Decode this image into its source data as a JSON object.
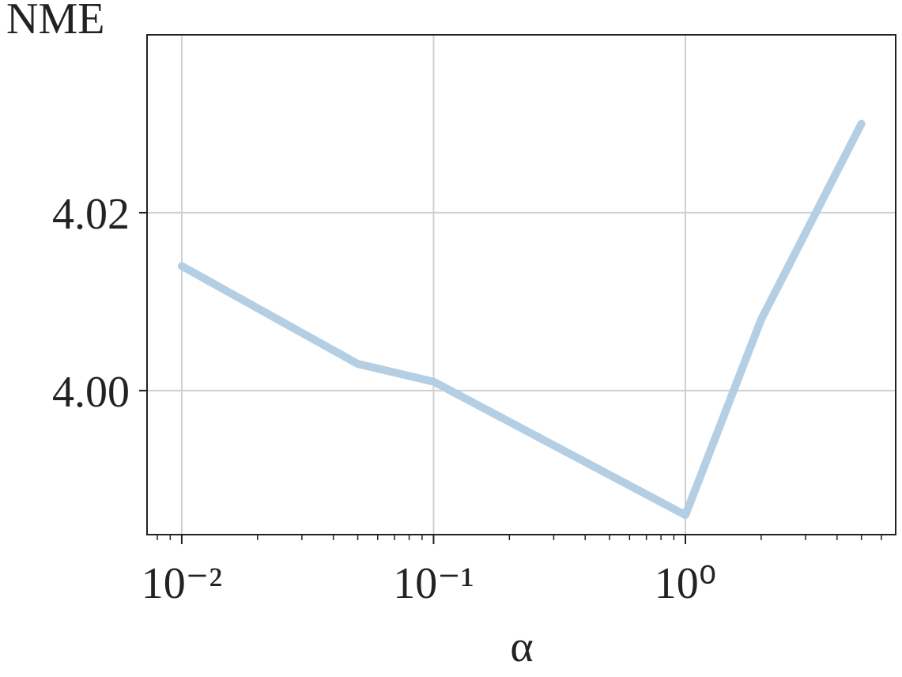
{
  "chart_data": {
    "type": "line",
    "ylabel": "NME",
    "xlabel": "α",
    "x": [
      0.01,
      0.05,
      0.1,
      1,
      2,
      5
    ],
    "series": [
      {
        "name": "NME",
        "color": "#b4cfe4",
        "values": [
          4.014,
          4.003,
          4.001,
          3.986,
          4.008,
          4.03
        ]
      }
    ],
    "xscale": "log",
    "xlim": [
      0.00728,
      6.84
    ],
    "xticks": [
      {
        "value": 0.01,
        "label": "10⁻²"
      },
      {
        "value": 0.1,
        "label": "10⁻¹"
      },
      {
        "value": 1,
        "label": "10⁰"
      }
    ],
    "xminorticks": [
      0.008,
      0.009,
      0.02,
      0.03,
      0.04,
      0.05,
      0.06,
      0.07,
      0.08,
      0.09,
      0.2,
      0.3,
      0.4,
      0.5,
      0.6,
      0.7,
      0.8,
      0.9,
      2,
      3,
      4,
      5,
      6
    ],
    "ylim": [
      3.9838,
      4.04
    ],
    "yticks": [
      {
        "value": 4,
        "label": "4.00"
      },
      4.02
    ],
    "grid": true
  }
}
